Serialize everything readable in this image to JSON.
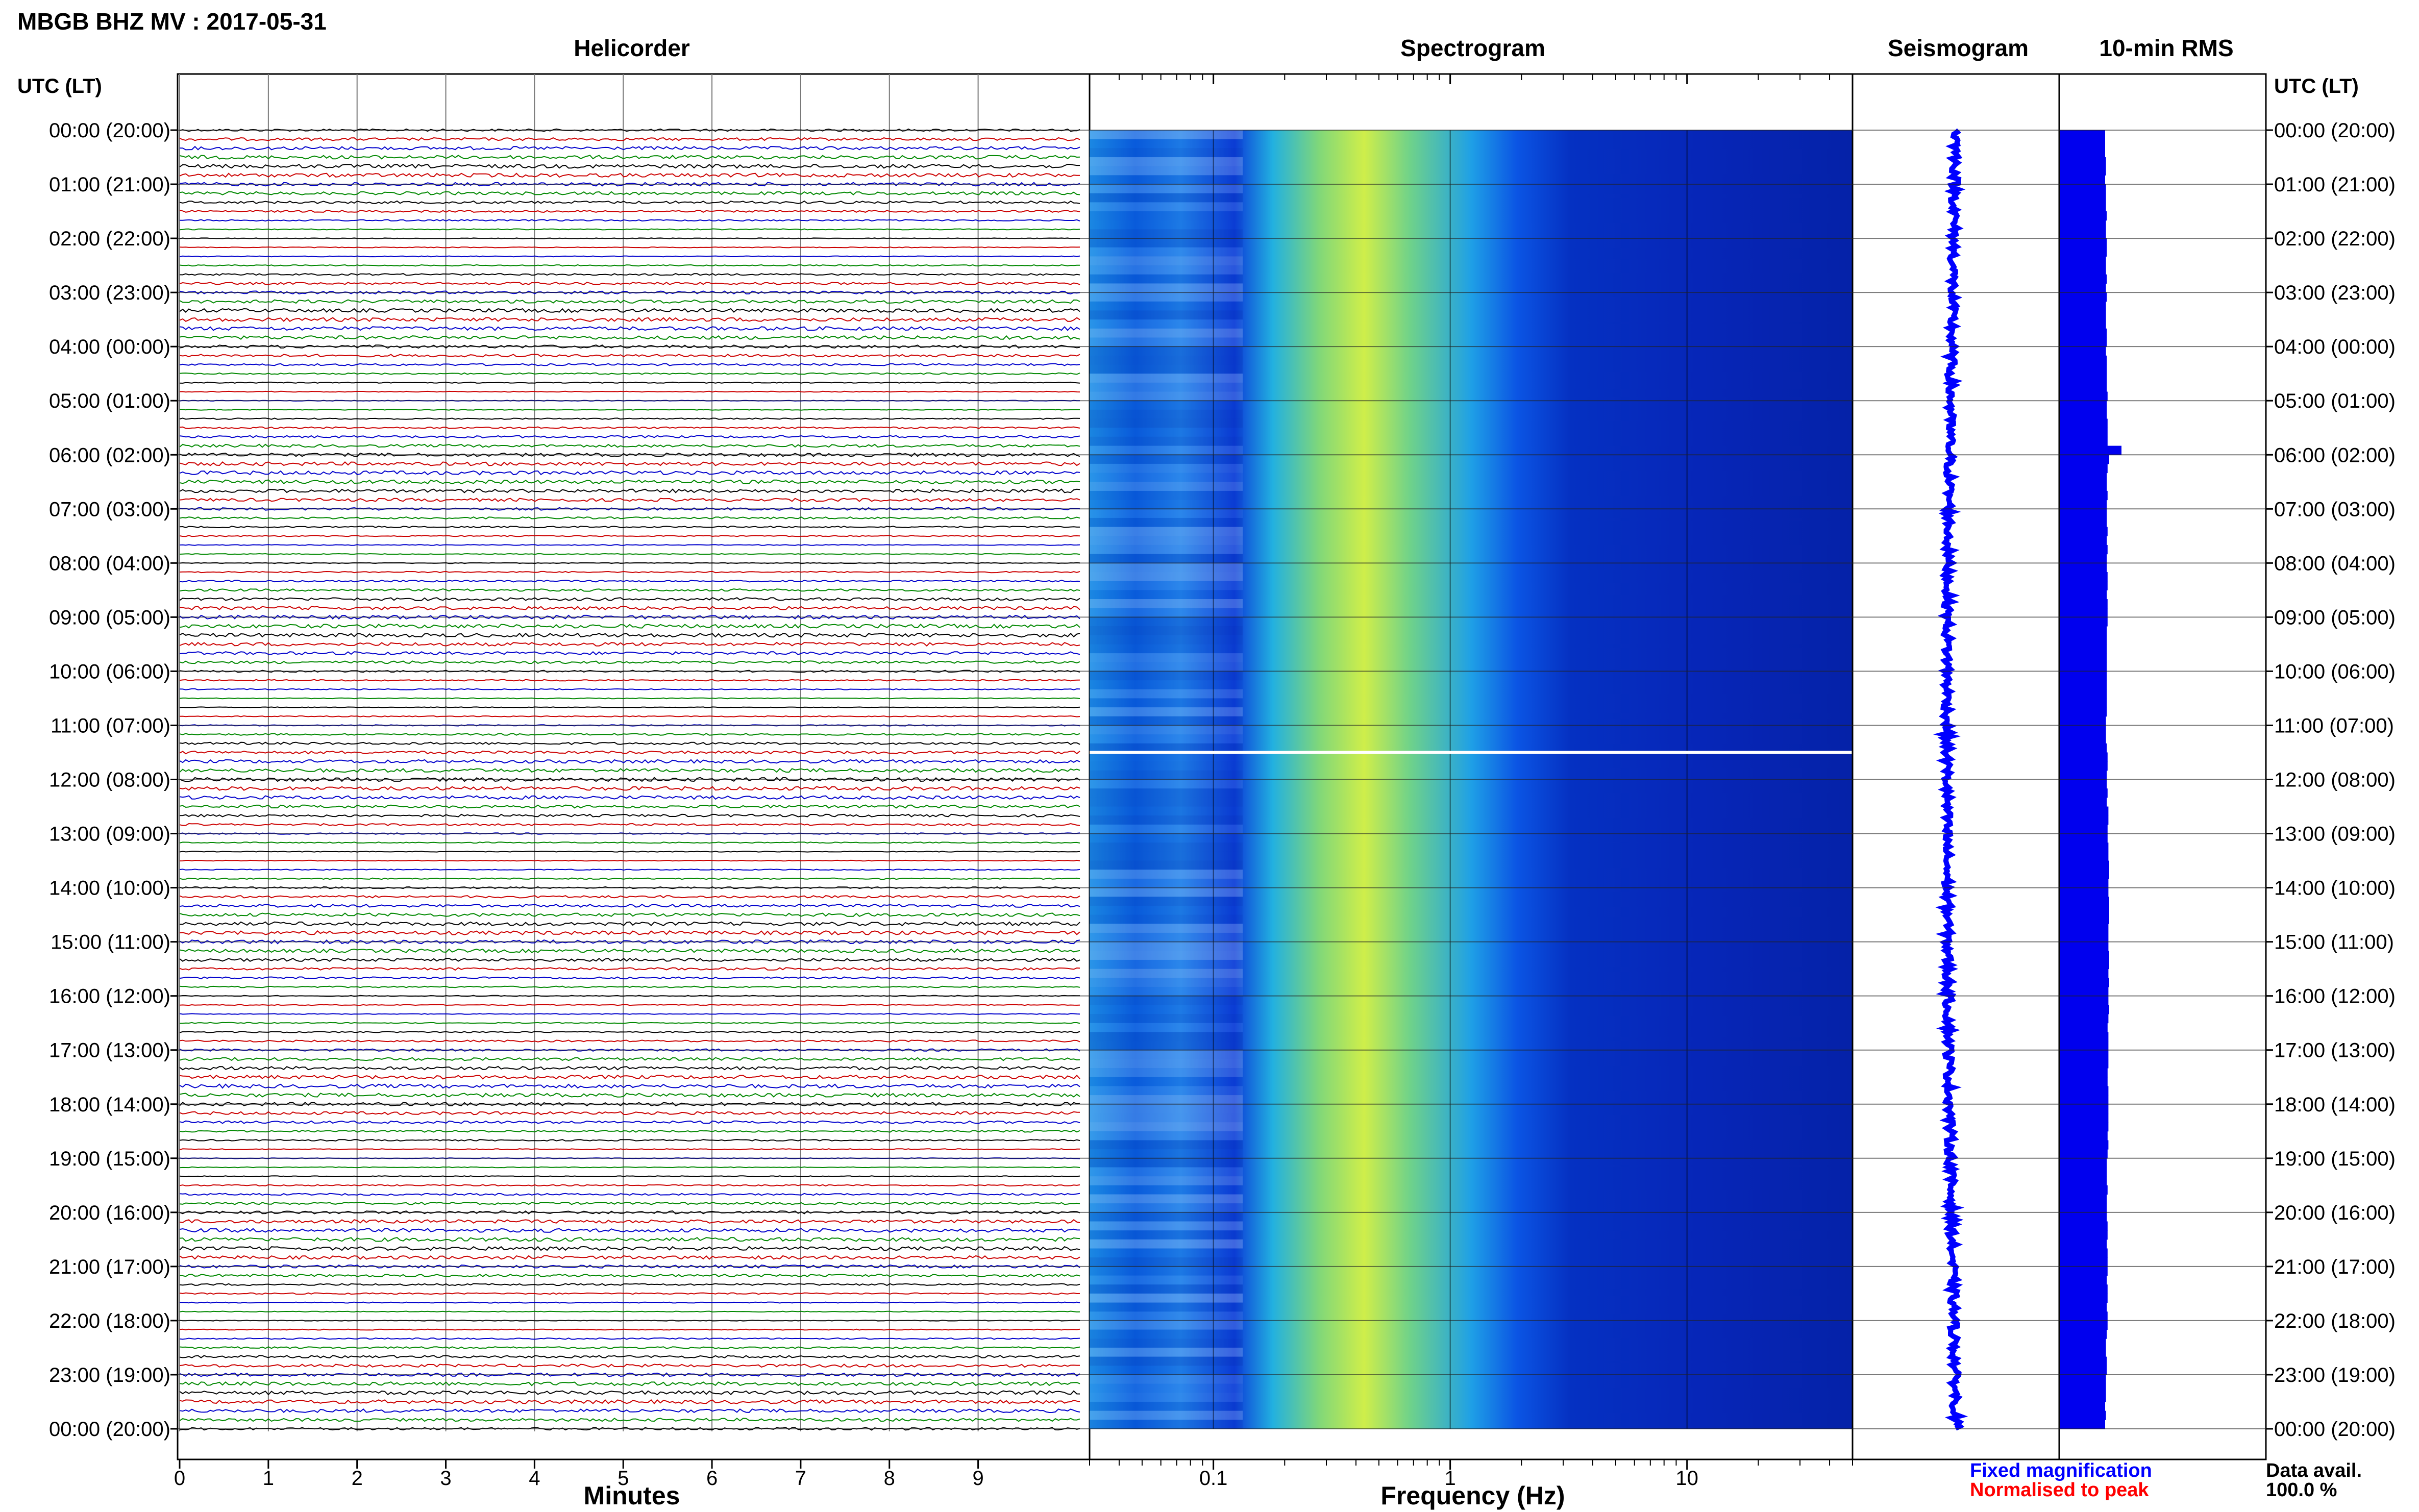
{
  "title": "MBGB BHZ MV : 2017-05-31",
  "time_axis_label": "UTC (LT)",
  "time_labels": [
    "00:00 (20:00)",
    "01:00 (21:00)",
    "02:00 (22:00)",
    "03:00 (23:00)",
    "04:00 (00:00)",
    "05:00 (01:00)",
    "06:00 (02:00)",
    "07:00 (03:00)",
    "08:00 (04:00)",
    "09:00 (05:00)",
    "10:00 (06:00)",
    "11:00 (07:00)",
    "12:00 (08:00)",
    "13:00 (09:00)",
    "14:00 (10:00)",
    "15:00 (11:00)",
    "16:00 (12:00)",
    "17:00 (13:00)",
    "18:00 (14:00)",
    "19:00 (15:00)",
    "20:00 (16:00)",
    "21:00 (17:00)",
    "22:00 (18:00)",
    "23:00 (19:00)",
    "00:00 (20:00)"
  ],
  "panels": {
    "helicorder": {
      "heading": "Helicorder",
      "xlabel": "Minutes",
      "ticks": [
        "0",
        "1",
        "2",
        "3",
        "4",
        "5",
        "6",
        "7",
        "8",
        "9"
      ],
      "trace_colors": [
        "#000000",
        "#cc0000",
        "#0000cc",
        "#008800"
      ]
    },
    "spectrogram": {
      "heading": "Spectrogram",
      "xlabel": "Frequency (Hz)",
      "ticks": [
        "0.1",
        "1",
        "10"
      ],
      "scale": "log"
    },
    "seismogram": {
      "heading": "Seismogram"
    },
    "rms": {
      "heading": "10-min RMS"
    }
  },
  "legend": {
    "fixed": "Fixed magnification",
    "normalised": "Normalised to peak",
    "fixed_color": "#0000ff",
    "normalised_color": "#ff0000"
  },
  "data_availability": {
    "label": "Data avail.",
    "value": "100.0 %"
  },
  "chart_data": {
    "type": "heatmap",
    "station": "MBGB BHZ MV",
    "date": "2017-05-31",
    "time_range_utc": [
      "00:00",
      "24:00"
    ],
    "helicorder_minutes_range": [
      0,
      10
    ],
    "spectrogram_freq_range_hz": [
      0.03,
      50
    ],
    "rms_10min_relative": [
      0.55,
      0.55,
      0.55,
      0.56,
      0.56,
      0.55,
      0.56,
      0.56,
      0.56,
      0.57,
      0.56,
      0.56,
      0.57,
      0.57,
      0.56,
      0.56,
      0.57,
      0.56,
      0.57,
      0.56,
      0.56,
      0.56,
      0.57,
      0.57,
      0.56,
      0.57,
      0.57,
      0.57,
      0.57,
      0.58,
      0.57,
      0.57,
      0.58,
      0.58,
      0.58,
      0.75,
      0.6,
      0.58,
      0.57,
      0.57,
      0.58,
      0.57,
      0.57,
      0.57,
      0.58,
      0.57,
      0.58,
      0.57,
      0.57,
      0.58,
      0.58,
      0.57,
      0.58,
      0.58,
      0.58,
      0.57,
      0.57,
      0.57,
      0.57,
      0.57,
      0.57,
      0.57,
      0.57,
      0.57,
      0.57,
      0.56,
      0.56,
      0.56,
      0.57,
      0.58,
      0.58,
      0.57,
      0.57,
      0.58,
      0.57,
      0.59,
      0.59,
      0.58,
      0.58,
      0.59,
      0.59,
      0.6,
      0.6,
      0.59,
      0.59,
      0.6,
      0.6,
      0.6,
      0.59,
      0.59,
      0.59,
      0.6,
      0.6,
      0.59,
      0.6,
      0.59,
      0.59,
      0.6,
      0.59,
      0.58,
      0.59,
      0.59,
      0.59,
      0.59,
      0.58,
      0.58,
      0.59,
      0.59,
      0.59,
      0.59,
      0.59,
      0.58,
      0.59,
      0.58,
      0.57,
      0.57,
      0.57,
      0.58,
      0.57,
      0.57,
      0.57,
      0.58,
      0.58,
      0.57,
      0.58,
      0.58,
      0.58,
      0.57,
      0.58,
      0.58,
      0.57,
      0.58,
      0.58,
      0.57,
      0.56,
      0.56,
      0.57,
      0.57,
      0.56,
      0.56,
      0.56,
      0.55,
      0.56,
      0.55
    ],
    "spectrogram_peak_hz": 0.35
  }
}
